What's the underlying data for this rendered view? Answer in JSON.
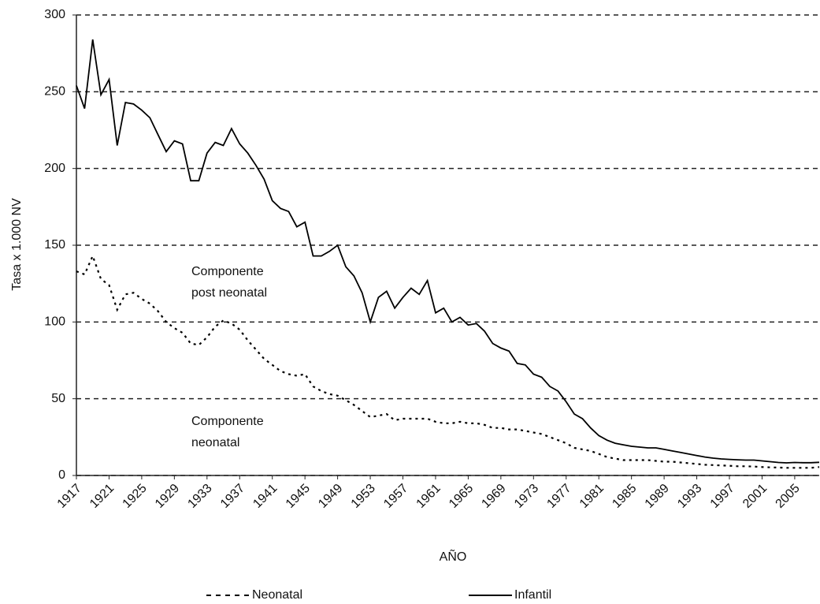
{
  "chart_data": {
    "type": "line",
    "x_label": "AÑO",
    "y_label": "Tasa x 1.000 NV",
    "annotations": [
      [
        "Componente",
        "post neonatal"
      ],
      [
        "Componente",
        "neonatal"
      ]
    ],
    "x": [
      1917,
      1918,
      1919,
      1920,
      1921,
      1922,
      1923,
      1924,
      1925,
      1926,
      1927,
      1928,
      1929,
      1930,
      1931,
      1932,
      1933,
      1934,
      1935,
      1936,
      1937,
      1938,
      1939,
      1940,
      1941,
      1942,
      1943,
      1944,
      1945,
      1946,
      1947,
      1948,
      1949,
      1950,
      1951,
      1952,
      1953,
      1954,
      1955,
      1956,
      1957,
      1958,
      1959,
      1960,
      1961,
      1962,
      1963,
      1964,
      1965,
      1966,
      1967,
      1968,
      1969,
      1970,
      1971,
      1972,
      1973,
      1974,
      1975,
      1976,
      1977,
      1978,
      1979,
      1980,
      1981,
      1982,
      1983,
      1984,
      1985,
      1986,
      1987,
      1988,
      1989,
      1990,
      1991,
      1992,
      1993,
      1994,
      1995,
      1996,
      1997,
      1998,
      1999,
      2000,
      2001,
      2002,
      2003,
      2004,
      2005,
      2006,
      2007,
      2008
    ],
    "series": [
      {
        "name": "Neonatal",
        "color": "#000000",
        "line_style": "dashed",
        "values": [
          133,
          131,
          143,
          128,
          124,
          108,
          118,
          119,
          115,
          112,
          107,
          100,
          96,
          93,
          86,
          85,
          90,
          97,
          101,
          99,
          95,
          88,
          82,
          76,
          72,
          68,
          66,
          65,
          66,
          58,
          55,
          53,
          52,
          49,
          46,
          42,
          38,
          39,
          40,
          36,
          37,
          37,
          37,
          37,
          35,
          34,
          34,
          35,
          34,
          34,
          33,
          31,
          31,
          30,
          30,
          29,
          28,
          27,
          25,
          23,
          21,
          18,
          17,
          16,
          14,
          12,
          11,
          10,
          10,
          10,
          10,
          9.5,
          9,
          9,
          8.5,
          8,
          7.5,
          7,
          6.8,
          6.5,
          6.3,
          6,
          6,
          5.8,
          5.5,
          5.3,
          5.2,
          5,
          5,
          5,
          5,
          5.5
        ]
      },
      {
        "name": "Infantil",
        "color": "#000000",
        "line_style": "solid",
        "values": [
          254,
          239,
          284,
          248,
          258,
          215,
          243,
          242,
          238,
          233,
          222,
          211,
          218,
          216,
          192,
          192,
          210,
          217,
          215,
          226,
          216,
          210,
          202,
          193,
          179,
          174,
          172,
          162,
          165,
          143,
          143,
          146,
          150,
          136,
          130,
          119,
          100,
          116,
          120,
          109,
          116,
          122,
          118,
          127,
          106,
          109,
          100,
          103,
          98,
          99,
          94,
          86,
          83,
          81,
          73,
          72,
          66,
          64,
          58,
          55,
          48,
          40,
          37,
          31,
          26,
          23,
          21,
          20,
          19,
          18.5,
          18,
          18,
          17,
          16,
          15,
          14,
          13,
          12,
          11.3,
          10.8,
          10.5,
          10.2,
          10,
          10,
          9.5,
          9,
          8.5,
          8.2,
          8.5,
          8.3,
          8.3,
          8.6
        ]
      }
    ],
    "xlim": [
      1917,
      2008
    ],
    "xticks": [
      1917,
      1921,
      1925,
      1929,
      1933,
      1937,
      1941,
      1945,
      1949,
      1953,
      1957,
      1961,
      1965,
      1969,
      1973,
      1977,
      1981,
      1985,
      1989,
      1993,
      1997,
      2001,
      2005
    ],
    "ylim": [
      0,
      300
    ],
    "yticks": [
      0,
      50,
      100,
      150,
      200,
      250,
      300
    ],
    "grid": true,
    "legend": "bottom"
  }
}
